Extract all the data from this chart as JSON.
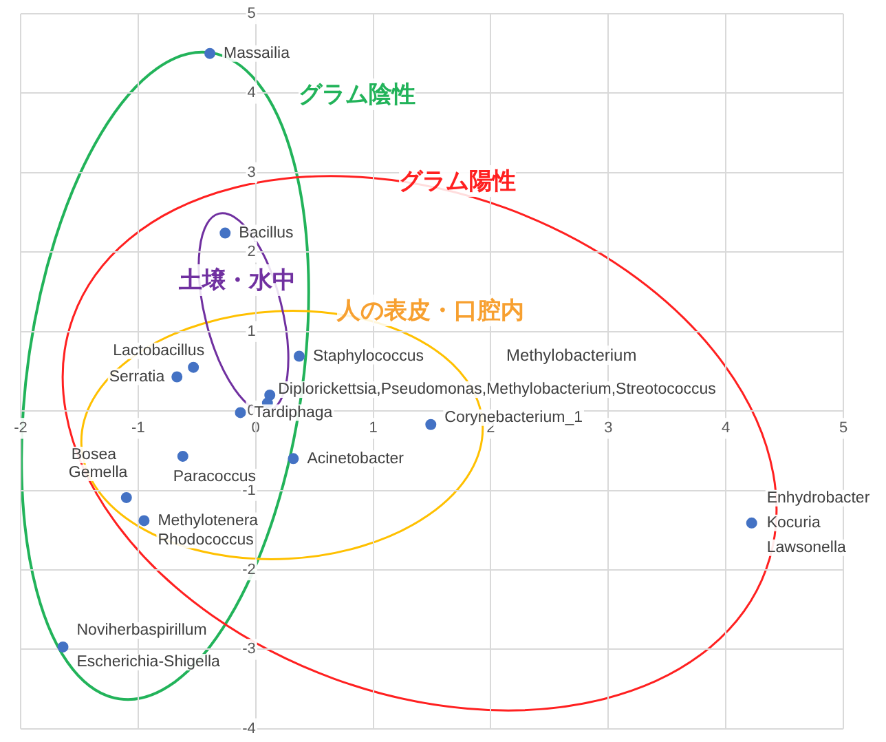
{
  "chart_data": {
    "type": "scatter",
    "xlim": [
      -2,
      5
    ],
    "ylim": [
      -4,
      5
    ],
    "xticks": [
      -2,
      -1,
      0,
      1,
      2,
      3,
      4,
      5
    ],
    "yticks": [
      -4,
      -3,
      -2,
      -1,
      0,
      1,
      2,
      3,
      4,
      5
    ],
    "grid": true,
    "legend": false,
    "marker": "circle",
    "series": [
      {
        "color": "#4472c4",
        "x": [
          -0.39,
          -0.26,
          0.37,
          -0.53,
          -0.67,
          0.12,
          0.1,
          -0.13,
          1.49,
          0.32,
          -0.62,
          -1.1,
          -0.95,
          4.22,
          -1.64
        ],
        "values": [
          4.5,
          2.24,
          0.69,
          0.55,
          0.43,
          0.2,
          0.1,
          -0.02,
          -0.17,
          -0.6,
          -0.57,
          -1.09,
          -1.38,
          -1.41,
          -2.97
        ]
      }
    ],
    "annotations": [
      "グラム陰性",
      "グラム陽性",
      "土壌・水中",
      "人の表皮・口腔内",
      "Methylobacterium",
      {
        "text": "Massailia",
        "x": -0.39,
        "y": 4.5
      },
      {
        "text": "Bacillus",
        "x": -0.26,
        "y": 2.24
      },
      {
        "text": "Staphylococcus",
        "x": 0.37,
        "y": 0.69
      },
      {
        "text": "Lactobacillus",
        "x": -0.53,
        "y": 0.55
      },
      {
        "text": "Serratia",
        "x": -0.67,
        "y": 0.43
      },
      {
        "text": "Diplorickettsia,Pseudomonas,Methylobacterium,Streotococcus",
        "x": 0.12,
        "y": 0.2
      },
      {
        "text": "Tardiphaga",
        "x": -0.13,
        "y": -0.02
      },
      {
        "text": "Corynebacterium_1",
        "x": 1.49,
        "y": -0.17
      },
      {
        "text": "Acinetobacter",
        "x": 0.32,
        "y": -0.6
      },
      {
        "text": "Bosea",
        "x": -1.1,
        "y": -1.09
      },
      {
        "text": "Gemella",
        "x": -1.1,
        "y": -1.09
      },
      {
        "text": "Paracoccus",
        "x": -0.62,
        "y": -0.57
      },
      {
        "text": "Methylotenera",
        "x": -0.95,
        "y": -1.38
      },
      {
        "text": "Rhodococcus",
        "x": -0.95,
        "y": -1.38
      },
      {
        "text": "Enhydrobacter",
        "x": 4.22,
        "y": -1.41
      },
      {
        "text": "Kocuria",
        "x": 4.22,
        "y": -1.41
      },
      {
        "text": "Lawsonella",
        "x": 4.22,
        "y": -1.41
      },
      {
        "text": "Noviherbaspirillum",
        "x": -1.64,
        "y": -2.97
      },
      {
        "text": "Escherichia-Shigella",
        "x": -1.64,
        "y": -2.97
      }
    ]
  }
}
